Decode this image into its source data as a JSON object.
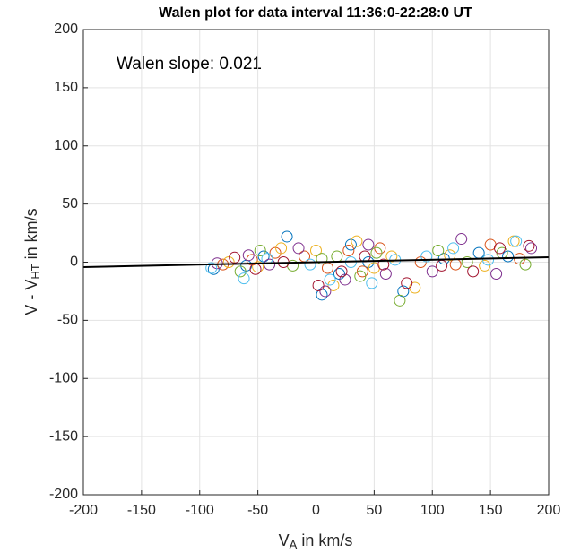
{
  "chart_data": {
    "type": "scatter",
    "title": "Walen plot for data interval 11:36:0-22:28:0 UT",
    "xlabel": {
      "main": "V",
      "sub": "A",
      "rest": " in km/s"
    },
    "ylabel": {
      "main": "V - V",
      "sub": "HT",
      "rest": " in km/s"
    },
    "annotation": "Walen slope: 0.021",
    "xlim": [
      -200,
      200
    ],
    "ylim": [
      -200,
      200
    ],
    "xticks": [
      -200,
      -150,
      -100,
      -50,
      0,
      50,
      100,
      150,
      200
    ],
    "yticks": [
      -200,
      -150,
      -100,
      -50,
      0,
      50,
      100,
      150,
      200
    ],
    "grid": true,
    "series": [
      {
        "color": "#0072BD",
        "x": [
          -88,
          -60,
          -45,
          -25,
          5,
          20,
          30,
          45,
          75,
          110,
          140,
          165
        ],
        "values": [
          -6,
          -3,
          5,
          22,
          -28,
          -10,
          15,
          0,
          -25,
          3,
          8,
          5
        ]
      },
      {
        "color": "#D95319",
        "x": [
          -80,
          -55,
          -35,
          -10,
          10,
          28,
          40,
          55,
          90,
          120,
          150,
          175
        ],
        "values": [
          -2,
          2,
          8,
          5,
          -5,
          10,
          -8,
          12,
          0,
          -2,
          15,
          3
        ]
      },
      {
        "color": "#EDB120",
        "x": [
          -75,
          -50,
          -30,
          0,
          15,
          35,
          50,
          65,
          85,
          115,
          145,
          170
        ],
        "values": [
          0,
          -4,
          12,
          10,
          -20,
          18,
          -5,
          5,
          -22,
          6,
          -3,
          18
        ]
      },
      {
        "color": "#7E2F8E",
        "x": [
          -85,
          -58,
          -40,
          -15,
          8,
          25,
          45,
          60,
          100,
          125,
          155,
          185
        ],
        "values": [
          -1,
          6,
          -2,
          12,
          -25,
          -15,
          15,
          -10,
          -8,
          20,
          -10,
          12
        ]
      },
      {
        "color": "#77AC30",
        "x": [
          -65,
          -48,
          -20,
          5,
          18,
          38,
          52,
          72,
          105,
          130,
          160,
          180
        ],
        "values": [
          -8,
          10,
          -3,
          3,
          5,
          -12,
          8,
          -33,
          10,
          0,
          8,
          -2
        ]
      },
      {
        "color": "#4DBEEE",
        "x": [
          -90,
          -62,
          -42,
          -5,
          12,
          30,
          48,
          68,
          95,
          118,
          148,
          172
        ],
        "values": [
          -5,
          -14,
          3,
          -2,
          -15,
          0,
          -18,
          2,
          5,
          12,
          2,
          18
        ]
      },
      {
        "color": "#A2142F",
        "x": [
          -70,
          -52,
          -28,
          2,
          22,
          42,
          58,
          78,
          108,
          135,
          158,
          183
        ],
        "values": [
          4,
          -6,
          0,
          -20,
          -8,
          5,
          -2,
          -18,
          -3,
          -8,
          12,
          14
        ]
      }
    ],
    "fit": {
      "color": "#000000",
      "x": [
        -200,
        200
      ],
      "values": [
        -4.2,
        4.2
      ]
    }
  }
}
